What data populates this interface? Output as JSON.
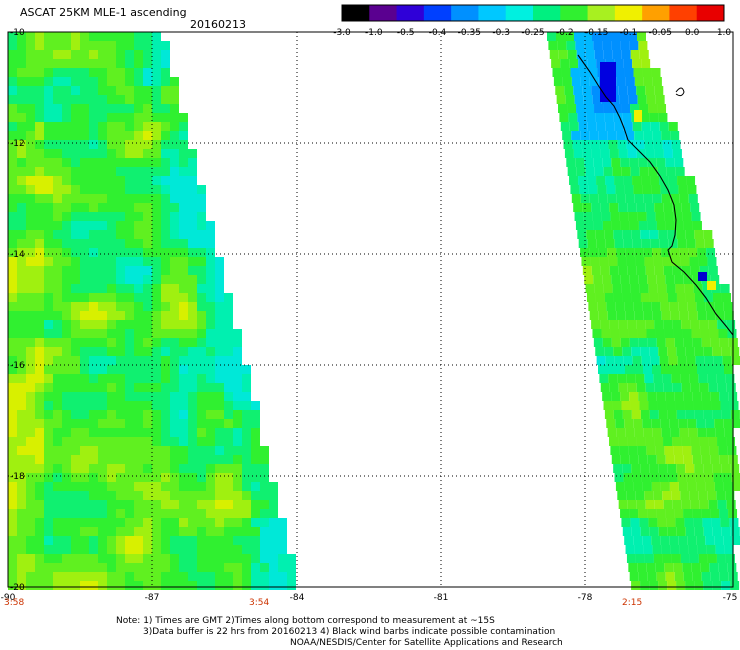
{
  "header": {
    "title": "ASCAT 25KM MLE-1 ascending",
    "date": "20160213"
  },
  "colorbar": {
    "labels": [
      "-3.0",
      "-1.0",
      "-0.5",
      "-0.4",
      "-0.35",
      "-0.3",
      "-0.25",
      "-0.2",
      "-0.15",
      "-0.1",
      "-0.05",
      "0.0",
      "1.0"
    ],
    "colors": [
      "#000000",
      "#5a0090",
      "#2f00d8",
      "#0040ff",
      "#0090ff",
      "#00c8ff",
      "#00f0e0",
      "#00f080",
      "#30f030",
      "#a8f020",
      "#f0f000",
      "#ffa000",
      "#ff4000",
      "#e80000"
    ]
  },
  "axes": {
    "x_ticks": [
      "-90",
      "-87",
      "-84",
      "-81",
      "-78",
      "-75"
    ],
    "y_ticks": [
      "-10",
      "-12",
      "-14",
      "-16",
      "-18",
      "-20"
    ],
    "x_range": [
      -90,
      -75
    ],
    "y_range": [
      -10,
      -20
    ]
  },
  "times": {
    "t1": "3:58",
    "t2": "3:54",
    "t3": "2:15"
  },
  "notes": {
    "line1": "Note: 1) Times are GMT 2)Times along bottom correspond to measurement at ~15S",
    "line2": "3)Data buffer is 22 hrs from 20160213 4) Black wind barbs indicate possible contamination",
    "line3": "NOAA/NESDIS/Center for Satellite Applications and Research"
  }
}
